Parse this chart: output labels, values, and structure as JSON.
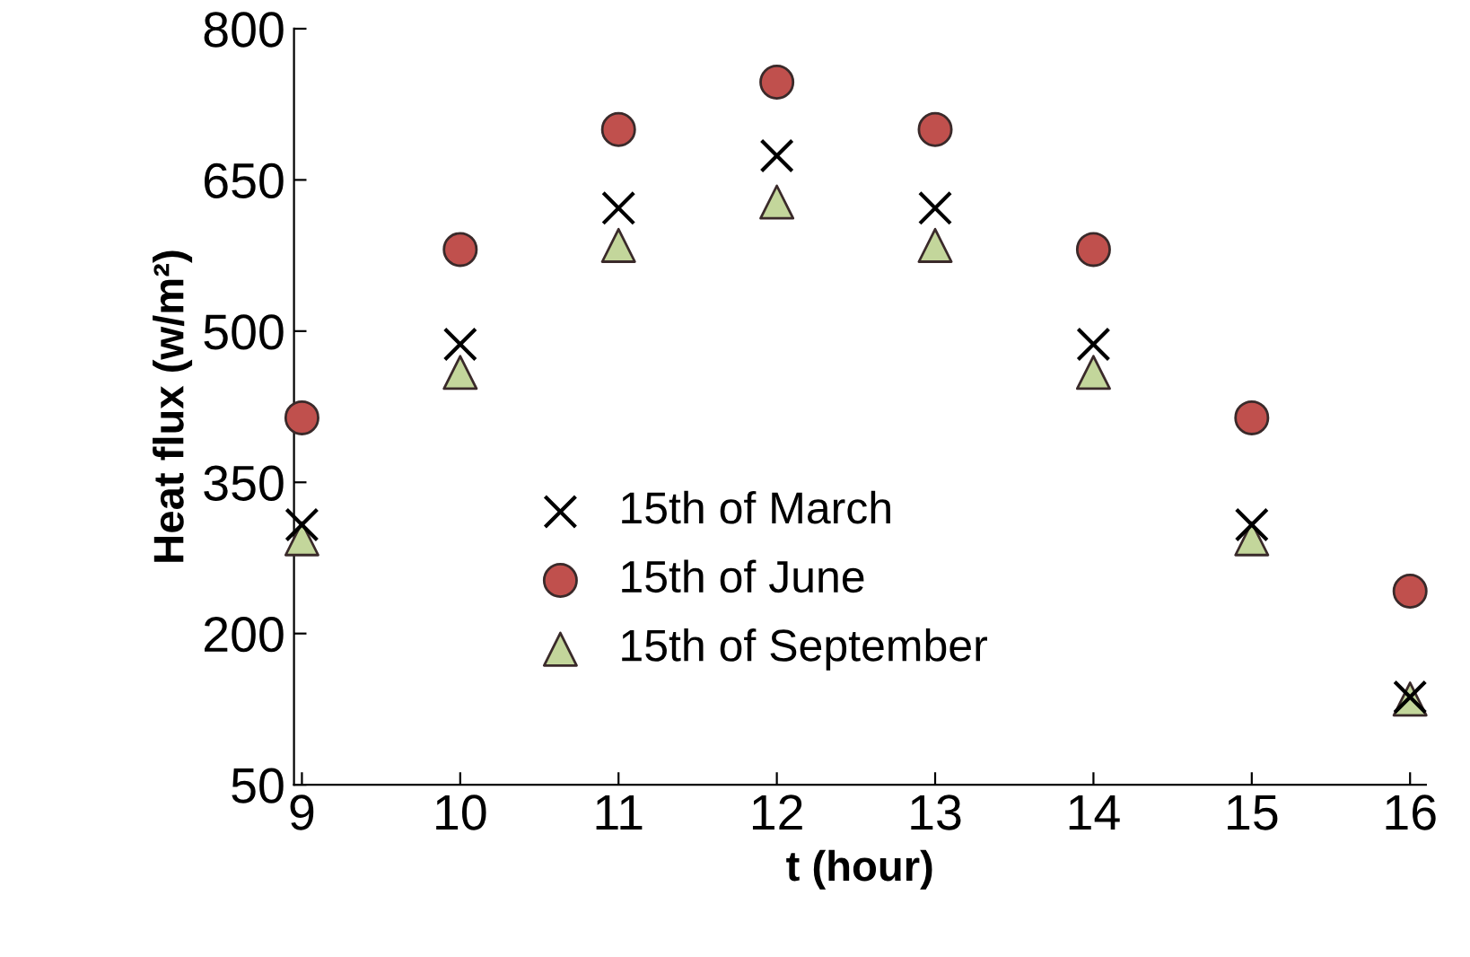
{
  "chart_data": {
    "type": "scatter",
    "xlabel": "t (hour)",
    "ylabel": "Heat flux (w/m²)",
    "x": [
      9,
      10,
      11,
      12,
      13,
      14,
      15,
      16
    ],
    "series": [
      {
        "name": "15th of March",
        "color": "#000000",
        "marker": "cross",
        "values": [
          308,
          487,
          622,
          674,
          622,
          487,
          308,
          137
        ]
      },
      {
        "name": "15th of June",
        "color": "#c0504d",
        "marker": "circle",
        "values": [
          414,
          581,
          700,
          747,
          700,
          581,
          414,
          242
        ]
      },
      {
        "name": "15th of September",
        "color": "#c3d69b",
        "marker": "triangle",
        "values": [
          294,
          459,
          585,
          628,
          585,
          459,
          294,
          135
        ]
      }
    ],
    "xlim": [
      8.95,
      16.1
    ],
    "xticks": [
      9,
      10,
      11,
      12,
      13,
      14,
      15,
      16
    ],
    "ylim": [
      50,
      800
    ],
    "yticks": [
      50,
      200,
      350,
      500,
      650,
      800
    ],
    "grid": false,
    "legend": "left"
  }
}
